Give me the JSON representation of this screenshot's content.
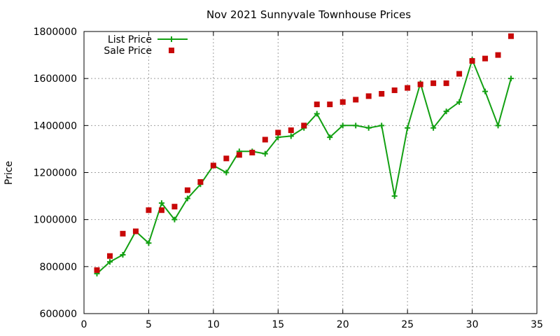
{
  "chart_data": {
    "type": "line",
    "title": "Nov 2021 Sunnyvale Townhouse Prices",
    "xlabel": "",
    "ylabel": "Price",
    "xlim": [
      0,
      35
    ],
    "ylim": [
      600000,
      1800000
    ],
    "x_ticks": [
      "0",
      "5",
      "10",
      "15",
      "20",
      "25",
      "30",
      "35"
    ],
    "y_ticks": [
      "600000",
      "800000",
      "1000000",
      "1200000",
      "1400000",
      "1600000",
      "1800000"
    ],
    "grid": true,
    "legend_position": "top-left",
    "series": [
      {
        "name": "List Price",
        "style": "line-points",
        "marker": "plus",
        "color": "#12a012",
        "x": [
          1,
          2,
          3,
          4,
          5,
          6,
          7,
          8,
          9,
          10,
          11,
          12,
          13,
          14,
          15,
          16,
          17,
          18,
          19,
          20,
          21,
          22,
          23,
          24,
          25,
          26,
          27,
          28,
          29,
          30,
          31,
          32,
          33
        ],
        "values": [
          770000,
          820000,
          850000,
          950000,
          900000,
          1070000,
          1000000,
          1090000,
          1150000,
          1230000,
          1200000,
          1290000,
          1290000,
          1280000,
          1350000,
          1355000,
          1390000,
          1450000,
          1350000,
          1400000,
          1400000,
          1390000,
          1400000,
          1100000,
          1390000,
          1580000,
          1390000,
          1460000,
          1500000,
          1680000,
          1545000,
          1400000,
          1600000
        ]
      },
      {
        "name": "Sale Price",
        "style": "points",
        "marker": "square",
        "color": "#c80808",
        "x": [
          1,
          2,
          3,
          4,
          5,
          6,
          7,
          8,
          9,
          10,
          11,
          12,
          13,
          14,
          15,
          16,
          17,
          18,
          19,
          20,
          21,
          22,
          23,
          24,
          25,
          26,
          27,
          28,
          29,
          30,
          31,
          32,
          33
        ],
        "values": [
          785000,
          845000,
          940000,
          950000,
          1040000,
          1040000,
          1055000,
          1125000,
          1160000,
          1230000,
          1260000,
          1275000,
          1285000,
          1340000,
          1370000,
          1380000,
          1400000,
          1490000,
          1490000,
          1500000,
          1510000,
          1525000,
          1535000,
          1550000,
          1560000,
          1575000,
          1580000,
          1580000,
          1620000,
          1675000,
          1685000,
          1700000,
          1780000
        ]
      }
    ]
  }
}
